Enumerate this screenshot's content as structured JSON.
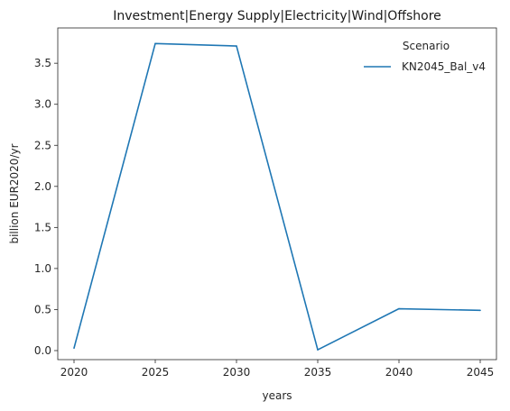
{
  "chart_data": {
    "type": "line",
    "title": "Investment|Energy Supply|Electricity|Wind|Offshore",
    "xlabel": "years",
    "ylabel": "billion EUR2020/yr",
    "x": [
      2020,
      2025,
      2030,
      2035,
      2040,
      2045
    ],
    "xticks": [
      "2020",
      "2025",
      "2030",
      "2035",
      "2040",
      "2045"
    ],
    "yticks": [
      "0.0",
      "0.5",
      "1.0",
      "1.5",
      "2.0",
      "2.5",
      "3.0",
      "3.5"
    ],
    "xlim": [
      2019,
      2046
    ],
    "ylim": [
      -0.11,
      3.93
    ],
    "grid": false,
    "legend": {
      "title": "Scenario",
      "position": "top-right"
    },
    "series": [
      {
        "name": "KN2045_Bal_v4",
        "color": "#1f77b4",
        "values": [
          0.03,
          3.74,
          3.71,
          0.01,
          0.51,
          0.49
        ]
      }
    ]
  }
}
